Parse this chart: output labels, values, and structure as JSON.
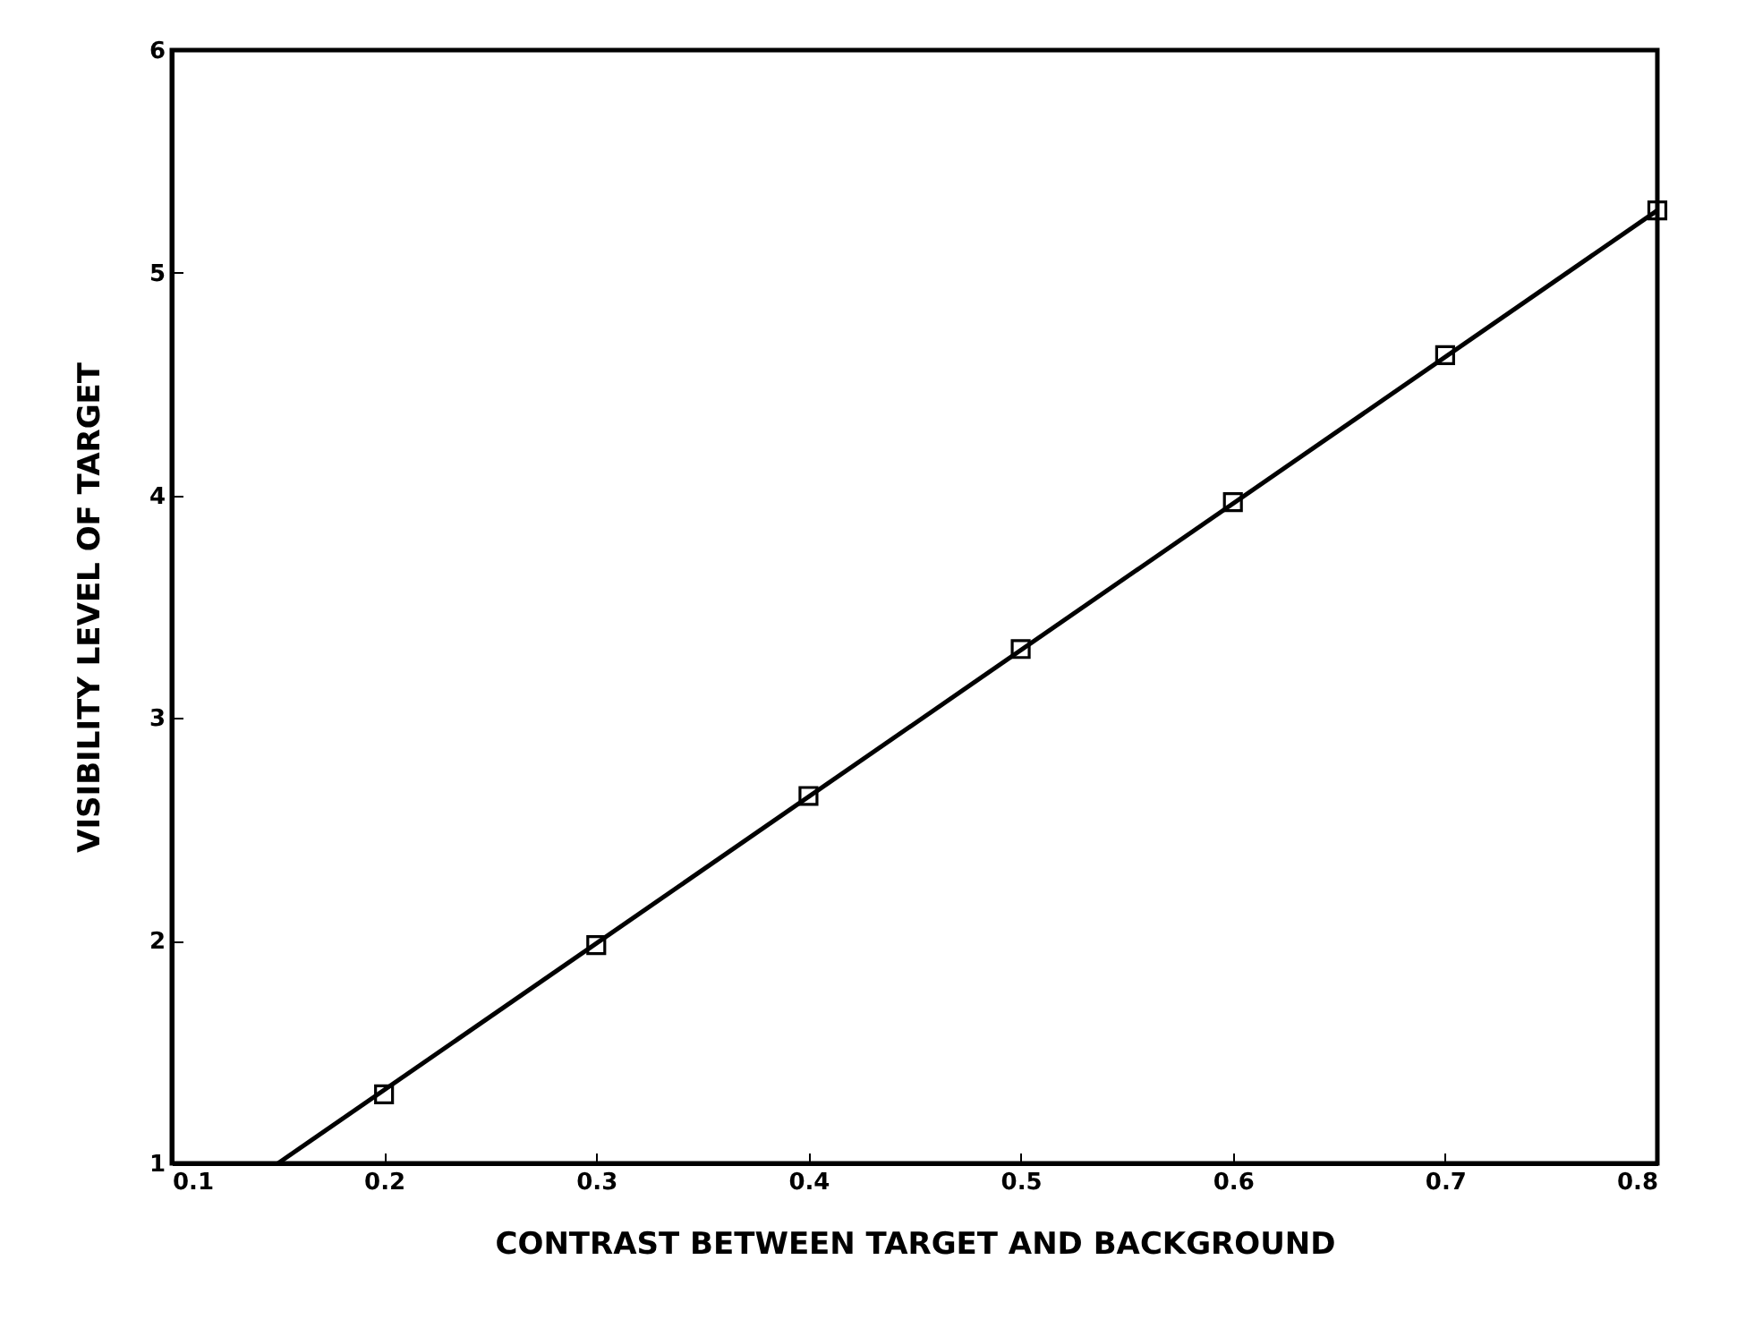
{
  "chart_data": {
    "type": "scatter",
    "xlabel": "CONTRAST BETWEEN TARGET AND BACKGROUND",
    "ylabel": "VISIBILITY LEVEL OF TARGET",
    "xlim": [
      0.1,
      0.8
    ],
    "ylim": [
      1,
      6
    ],
    "xticks": [
      {
        "value": 0.1,
        "label": "0.1"
      },
      {
        "value": 0.2,
        "label": "0.2"
      },
      {
        "value": 0.3,
        "label": "0.3"
      },
      {
        "value": 0.4,
        "label": "0.4"
      },
      {
        "value": 0.5,
        "label": "0.5"
      },
      {
        "value": 0.6,
        "label": "0.6"
      },
      {
        "value": 0.7,
        "label": "0.7"
      },
      {
        "value": 0.8,
        "label": "0.8"
      }
    ],
    "yticks": [
      {
        "value": 1,
        "label": "1"
      },
      {
        "value": 2,
        "label": "2"
      },
      {
        "value": 3,
        "label": "3"
      },
      {
        "value": 4,
        "label": "4"
      },
      {
        "value": 5,
        "label": "5"
      },
      {
        "value": 6,
        "label": "6"
      }
    ],
    "line_style": "solid",
    "series": [
      {
        "marker": "square",
        "color": "#000000",
        "x": [
          0.2,
          0.3,
          0.4,
          0.5,
          0.6,
          0.7,
          0.8
        ],
        "values": [
          1.31,
          1.98,
          2.65,
          3.31,
          3.97,
          4.63,
          5.28
        ]
      },
      {
        "type": "line",
        "marker": "none",
        "color": "#000000",
        "x": [
          0.15,
          0.8
        ],
        "values": [
          1.0,
          5.28
        ]
      }
    ]
  }
}
